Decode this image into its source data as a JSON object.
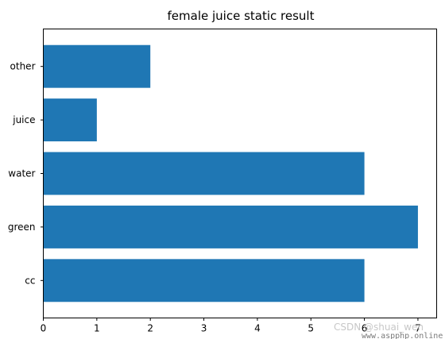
{
  "chart_data": {
    "type": "bar",
    "orientation": "horizontal",
    "title": "female juice static result",
    "categories": [
      "cc",
      "green",
      "water",
      "juice",
      "other"
    ],
    "values": [
      6,
      7,
      6,
      1,
      2
    ],
    "xlim": [
      0,
      7.35
    ],
    "xticks": [
      0,
      1,
      2,
      3,
      4,
      5,
      6,
      7
    ],
    "xlabel": "",
    "ylabel": "",
    "grid": false,
    "bar_color": "#1f77b4"
  },
  "watermark": {
    "csdn": "CSDN @shuai_wen",
    "site": "www.aspphp.online"
  }
}
